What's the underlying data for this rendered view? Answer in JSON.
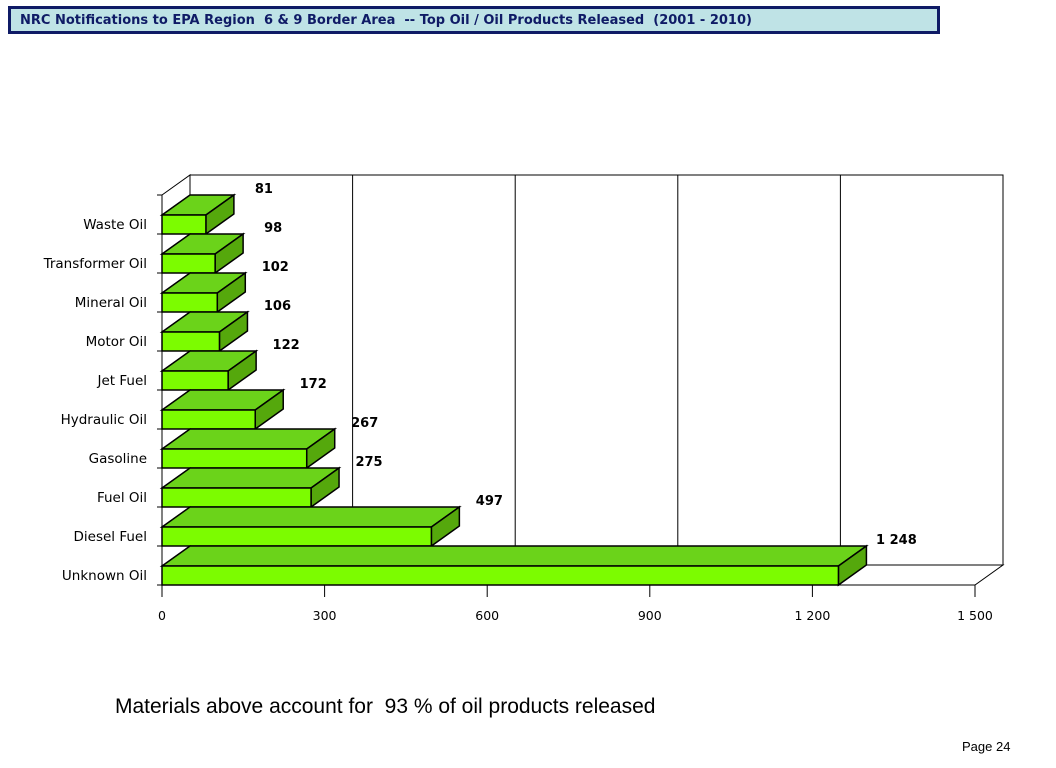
{
  "header": {
    "title": "NRC Notifications to EPA Region  6 & 9 Border Area  -- Top Oil / Oil Products Released  (2001 - 2010)"
  },
  "chart_data": {
    "type": "bar",
    "orientation": "horizontal",
    "categories": [
      "Unknown Oil",
      "Diesel Fuel",
      "Fuel Oil",
      "Gasoline",
      "Hydraulic Oil",
      "Jet Fuel",
      "Motor Oil",
      "Mineral Oil",
      "Transformer Oil",
      "Waste Oil"
    ],
    "values": [
      1248,
      497,
      275,
      267,
      172,
      122,
      106,
      102,
      98,
      81
    ],
    "data_labels": [
      "1 248",
      "497",
      "275",
      "267",
      "172",
      "122",
      "106",
      "102",
      "98",
      "81"
    ],
    "x_ticks": [
      0,
      300,
      600,
      900,
      1200,
      1500
    ],
    "x_tick_labels": [
      "0",
      "300",
      "600",
      "900",
      "1 200",
      "1 500"
    ],
    "xlim": [
      0,
      1500
    ],
    "grid": true,
    "three_d": true,
    "colors": {
      "bar_front": "#7cfc00",
      "bar_top": "#6bd31a",
      "bar_side": "#55a80c",
      "floor": "#808080",
      "outline": "#000000"
    }
  },
  "footnote": "Materials above account for  93 % of oil products released",
  "page": "Page 24"
}
